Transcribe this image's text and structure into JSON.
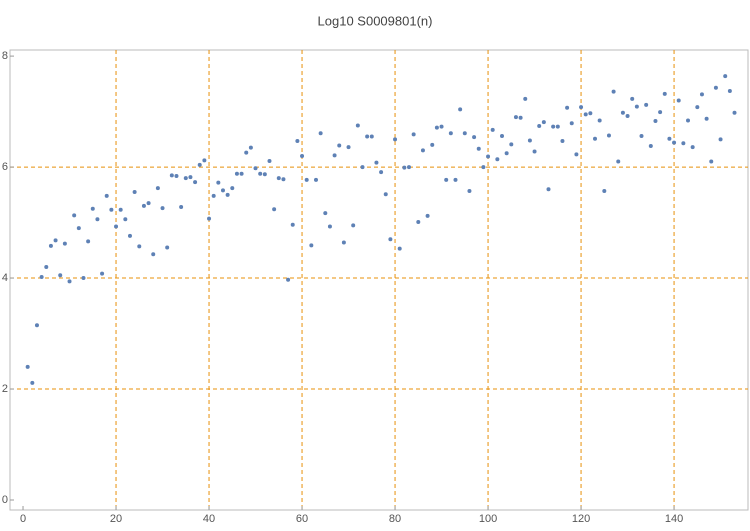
{
  "chart_data": {
    "type": "scatter",
    "title": "Log10 S0009801(n)",
    "x": [
      1,
      2,
      3,
      4,
      5,
      6,
      7,
      8,
      9,
      10,
      11,
      12,
      13,
      14,
      15,
      16,
      17,
      18,
      19,
      20,
      21,
      22,
      23,
      24,
      25,
      26,
      27,
      28,
      29,
      30,
      31,
      32,
      33,
      34,
      35,
      36,
      37,
      38,
      39,
      40,
      41,
      42,
      43,
      44,
      45,
      46,
      47,
      48,
      49,
      50,
      51,
      52,
      53,
      54,
      55,
      56,
      57,
      58,
      59,
      60,
      61,
      62,
      63,
      64,
      65,
      66,
      67,
      68,
      69,
      70,
      71,
      72,
      73,
      74,
      75,
      76,
      77,
      78,
      79,
      80,
      81,
      82,
      83,
      84,
      85,
      86,
      87,
      88,
      89,
      90,
      91,
      92,
      93,
      94,
      95,
      96,
      97,
      98,
      99,
      100,
      101,
      102,
      103,
      104,
      105,
      106,
      107,
      108,
      109,
      110,
      111,
      112,
      113,
      114,
      115,
      116,
      117,
      118,
      119,
      120,
      121,
      122,
      123,
      124,
      125,
      126,
      127,
      128,
      129,
      130,
      131,
      132,
      133,
      134,
      135,
      136,
      137,
      138,
      139,
      140,
      141,
      142,
      143,
      144,
      145,
      146,
      147,
      148,
      149,
      150,
      151,
      152,
      153
    ],
    "values": [
      2.4,
      2.11,
      3.15,
      4.02,
      4.2,
      4.58,
      4.68,
      4.05,
      4.62,
      3.94,
      5.13,
      4.9,
      4.0,
      4.66,
      5.25,
      5.06,
      4.08,
      5.48,
      5.23,
      4.93,
      5.23,
      5.06,
      4.76,
      5.55,
      4.57,
      5.3,
      5.35,
      4.43,
      5.62,
      5.26,
      4.55,
      5.85,
      5.84,
      5.28,
      5.8,
      5.82,
      5.73,
      6.04,
      6.12,
      5.07,
      5.48,
      5.72,
      5.58,
      5.5,
      5.62,
      5.88,
      5.88,
      6.26,
      6.35,
      5.98,
      5.88,
      5.87,
      6.11,
      5.24,
      5.8,
      5.78,
      3.97,
      4.96,
      6.47,
      6.2,
      5.77,
      4.59,
      5.77,
      6.61,
      5.17,
      4.93,
      6.21,
      6.39,
      4.64,
      6.36,
      4.95,
      6.75,
      6.0,
      6.55,
      6.55,
      6.08,
      5.91,
      5.51,
      4.7,
      6.5,
      4.53,
      5.99,
      6.0,
      6.59,
      5.01,
      6.3,
      5.12,
      6.4,
      6.71,
      6.73,
      5.77,
      6.61,
      5.77,
      7.04,
      6.61,
      5.57,
      6.54,
      6.33,
      6.0,
      6.19,
      6.67,
      6.14,
      6.56,
      6.25,
      6.41,
      6.9,
      6.89,
      7.23,
      6.48,
      6.28,
      6.74,
      6.81,
      5.6,
      6.73,
      6.73,
      6.47,
      7.07,
      6.79,
      6.23,
      7.08,
      6.95,
      6.97,
      6.51,
      6.84,
      5.57,
      6.57,
      7.36,
      6.1,
      6.98,
      6.92,
      7.23,
      7.09,
      6.56,
      7.12,
      6.38,
      6.83,
      6.99,
      7.32,
      6.51,
      6.44,
      7.2,
      6.43,
      6.84,
      6.36,
      7.08,
      7.31,
      6.87,
      6.1,
      7.43,
      6.5,
      7.64,
      7.37,
      6.98
    ],
    "color": "#5e81b5",
    "xlim": [
      -2.8,
      155.9
    ],
    "ylim": [
      -0.18,
      8.11
    ],
    "xticks": [
      0,
      20,
      40,
      60,
      80,
      100,
      120,
      140
    ],
    "yticks": [
      0,
      2,
      4,
      6,
      8
    ],
    "xgrid": [
      20,
      40,
      60,
      80,
      100,
      120,
      140
    ],
    "ygrid": [
      2,
      4,
      6
    ],
    "grid_color": "#e8900a"
  }
}
